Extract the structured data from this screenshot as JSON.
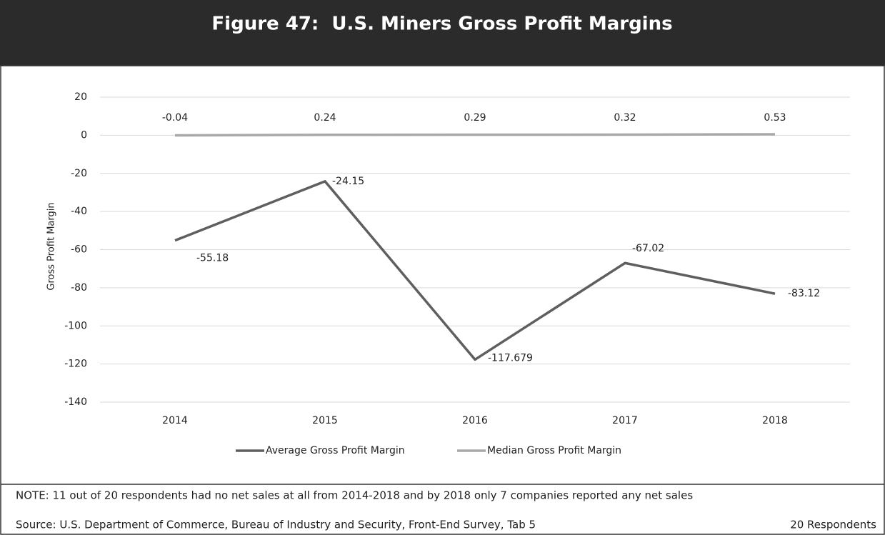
{
  "chart_data": {
    "type": "line",
    "title": "Figure 47:  U.S. Miners Gross Profit Margins",
    "y_label": "Gross Profit Margin",
    "categories": [
      "2014",
      "2015",
      "2016",
      "2017",
      "2018"
    ],
    "series": [
      {
        "name": "Average Gross Profit Margin",
        "color": "#5f5f5f",
        "values": [
          -55.18,
          -24.15,
          -117.679,
          -67.02,
          -83.12
        ]
      },
      {
        "name": "Median Gross Profit Margin",
        "color": "#a8a8a8",
        "values": [
          -0.04,
          0.24,
          0.29,
          0.32,
          0.53
        ]
      }
    ],
    "ylim": [
      -140,
      20
    ],
    "yticks": [
      20,
      0,
      -20,
      -40,
      -60,
      -80,
      -100,
      -120,
      -140
    ],
    "grid": true,
    "legend": "bottom",
    "note": "NOTE:  11 out of 20 respondents had no net sales at all from 2014-2018 and by 2018 only 7 companies reported any net sales",
    "source": "Source: U.S. Department of Commerce, Bureau of Industry and Security, Front-End Survey, Tab 5",
    "respondents": "20 Respondents"
  }
}
